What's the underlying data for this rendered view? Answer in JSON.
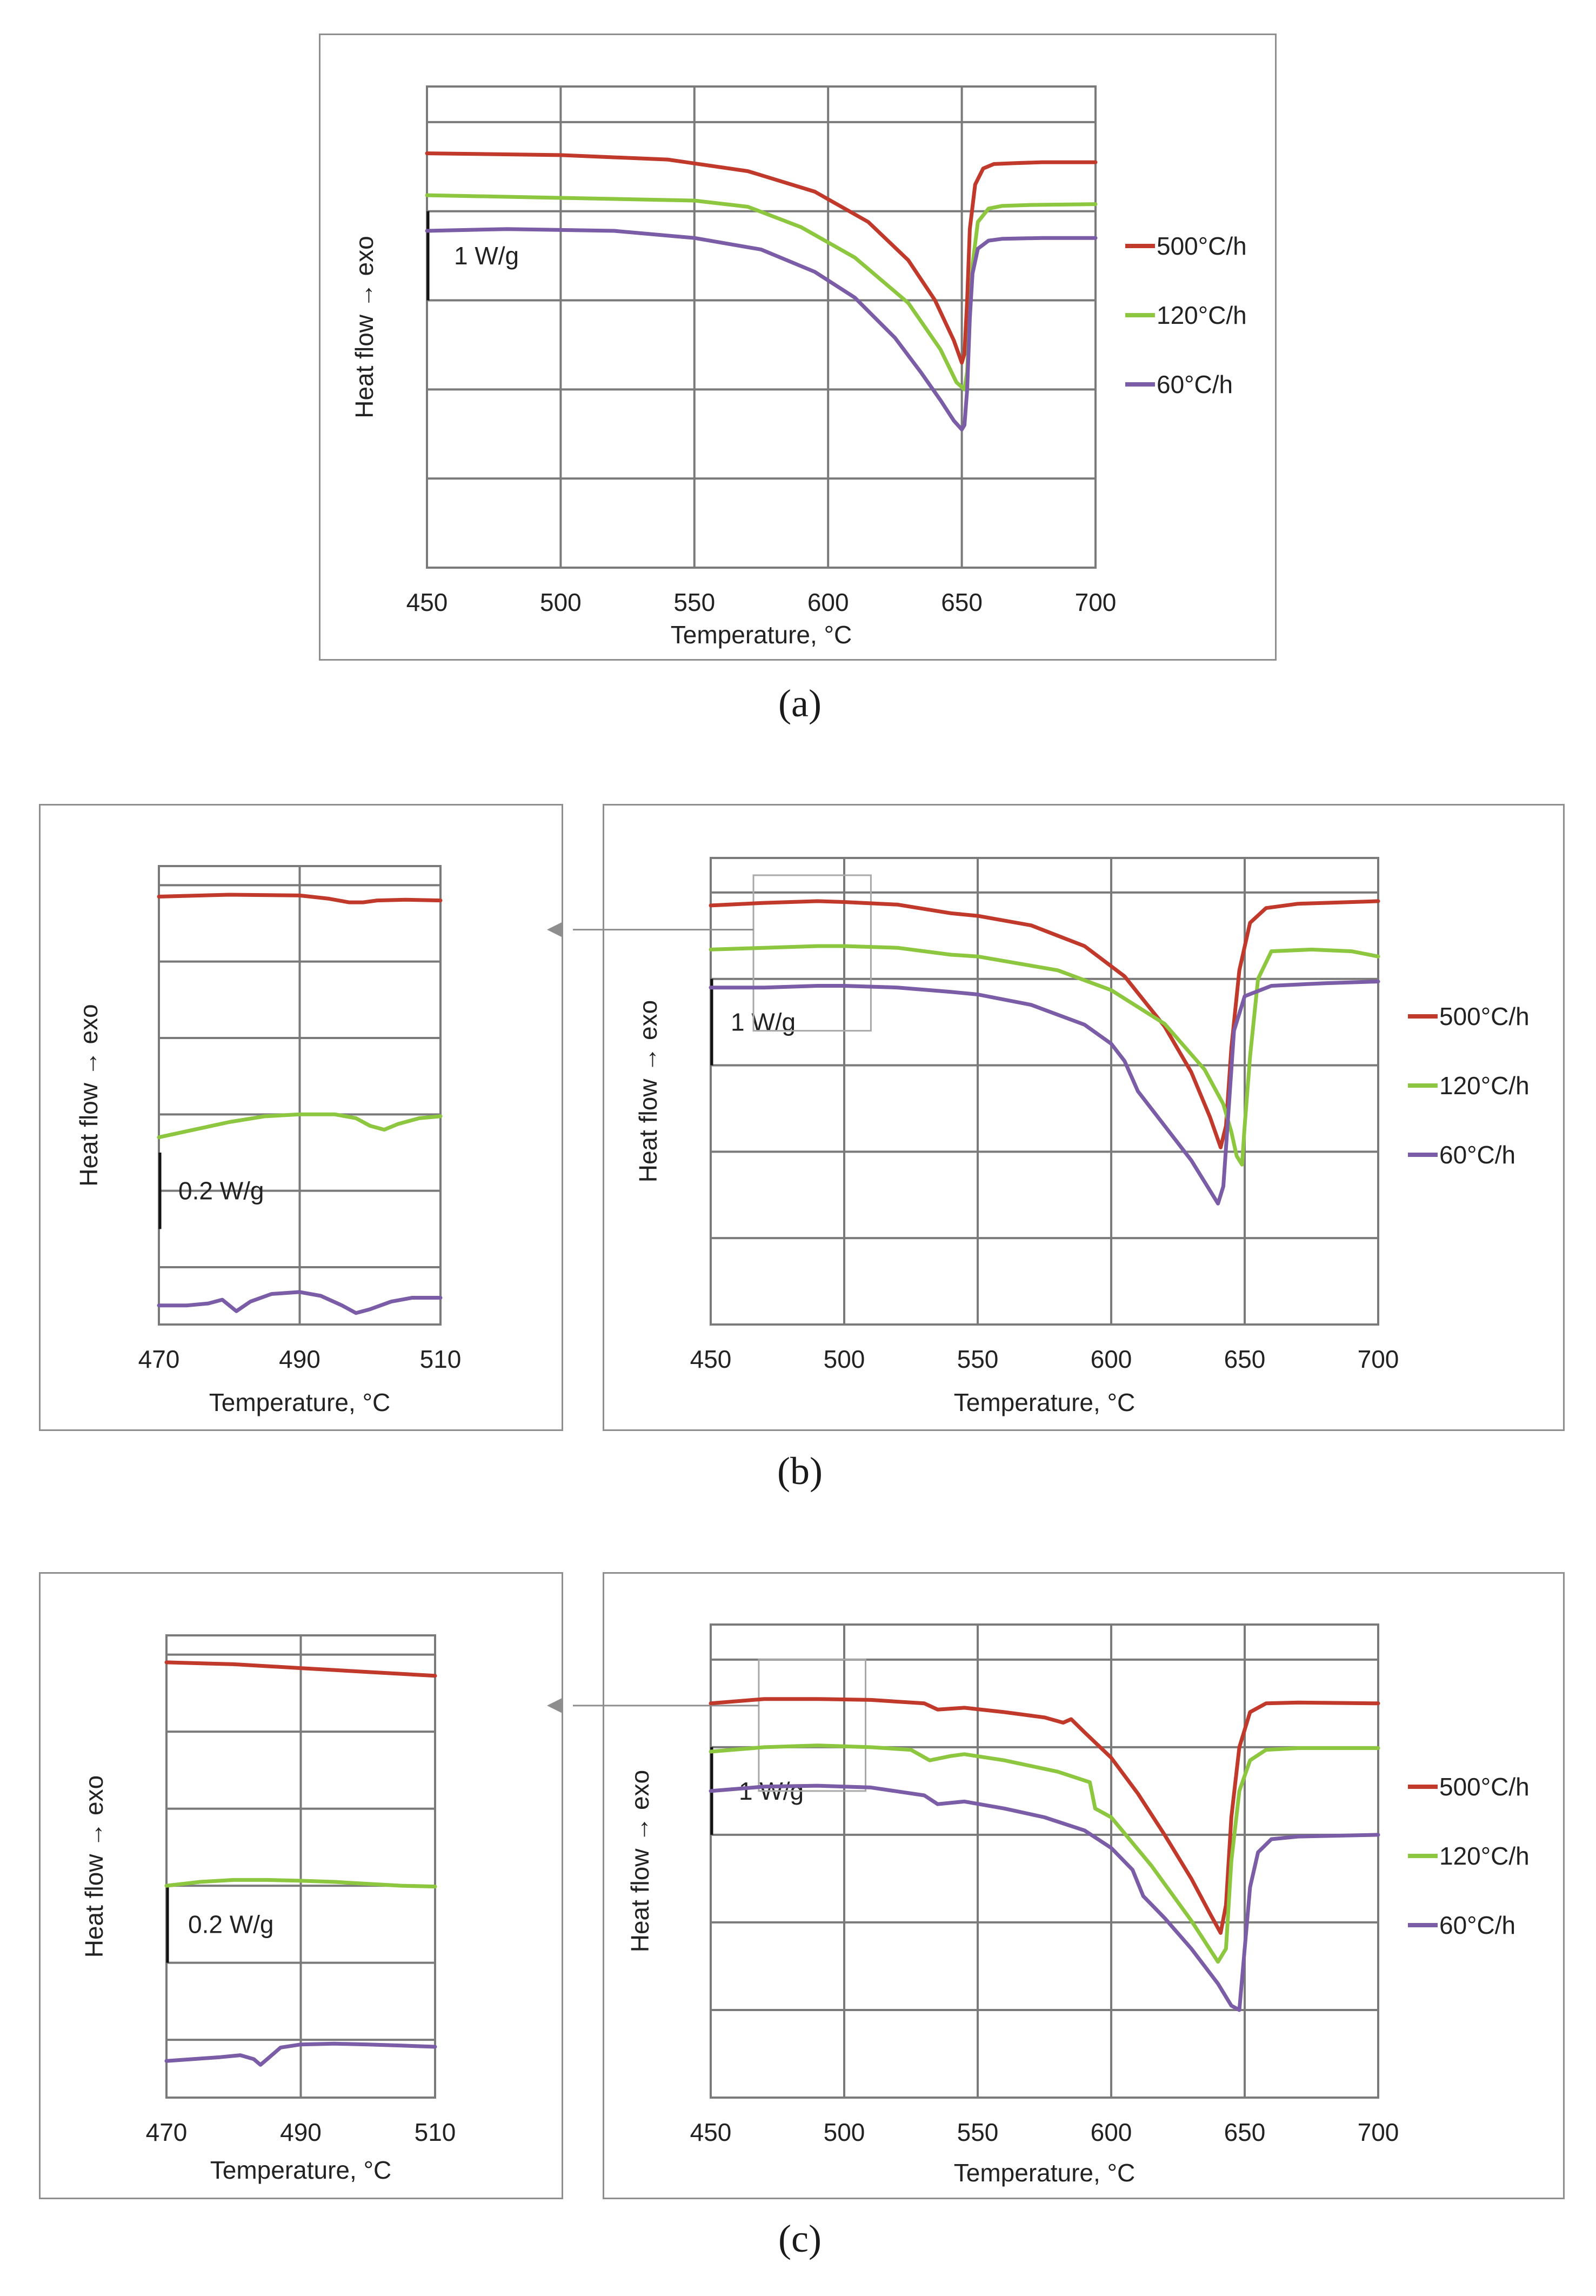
{
  "figure_labels": {
    "a": "(a)",
    "b": "(b)",
    "c": "(c)"
  },
  "chart_data": [
    {
      "id": "a-main",
      "type": "line",
      "title": "",
      "xlabel": "Temperature, °C",
      "ylabel": "Heat flow  → exo",
      "xlim": [
        450,
        700
      ],
      "ylim": [
        -5.0,
        0.4
      ],
      "xticks": [
        450,
        500,
        550,
        600,
        650,
        700
      ],
      "xtick_labels": [
        "450",
        "500",
        "550",
        "600",
        "650",
        "700"
      ],
      "ygrid": [
        -4,
        -3,
        -2,
        -1,
        0
      ],
      "scale_bar": {
        "label": "1 W/g",
        "from": -2.0,
        "to": -1.0
      },
      "grid": true,
      "legend_position": "right",
      "series": [
        {
          "name": "500°C/h",
          "color": "#c0392b",
          "x": [
            450,
            500,
            540,
            570,
            595,
            615,
            630,
            640,
            647,
            650,
            651,
            652,
            653,
            655,
            658,
            662,
            670,
            680,
            700
          ],
          "y": [
            -0.35,
            -0.37,
            -0.42,
            -0.55,
            -0.78,
            -1.12,
            -1.55,
            -2.0,
            -2.45,
            -2.7,
            -2.6,
            -2.0,
            -1.2,
            -0.7,
            -0.52,
            -0.47,
            -0.46,
            -0.45,
            -0.45
          ]
        },
        {
          "name": "120°C/h",
          "color": "#8dc63f",
          "x": [
            450,
            500,
            550,
            570,
            590,
            610,
            630,
            642,
            648,
            651,
            652,
            653,
            654,
            656,
            660,
            665,
            675,
            700
          ],
          "y": [
            -0.82,
            -0.85,
            -0.88,
            -0.95,
            -1.18,
            -1.52,
            -2.03,
            -2.55,
            -2.92,
            -3.0,
            -2.8,
            -2.2,
            -1.6,
            -1.12,
            -0.97,
            -0.94,
            -0.93,
            -0.92
          ]
        },
        {
          "name": "60°C/h",
          "color": "#7b5ca7",
          "x": [
            450,
            480,
            520,
            550,
            575,
            595,
            610,
            625,
            635,
            642,
            647,
            650,
            651,
            652,
            653,
            654,
            656,
            660,
            665,
            680,
            700
          ],
          "y": [
            -1.22,
            -1.2,
            -1.22,
            -1.3,
            -1.43,
            -1.68,
            -1.97,
            -2.42,
            -2.82,
            -3.12,
            -3.35,
            -3.45,
            -3.4,
            -3.0,
            -2.2,
            -1.7,
            -1.42,
            -1.33,
            -1.31,
            -1.3,
            -1.3
          ]
        }
      ]
    },
    {
      "id": "b-zoom",
      "type": "line",
      "title": "",
      "xlabel": "Temperature, °C",
      "ylabel": "Heat flow  → exo",
      "xlim": [
        470,
        510
      ],
      "ylim": [
        -1.15,
        0.05
      ],
      "xticks": [
        470,
        490,
        510
      ],
      "xtick_labels": [
        "470",
        "490",
        "510"
      ],
      "ygrid": [
        -1.0,
        -0.8,
        -0.6,
        -0.4,
        -0.2,
        0.0
      ],
      "scale_bar": {
        "label": "0.2 W/g",
        "from": -0.9,
        "to": -0.7
      },
      "grid": true,
      "series": [
        {
          "name": "500°C/h",
          "color": "#c0392b",
          "x": [
            470,
            480,
            490,
            494,
            497,
            499,
            501,
            505,
            510
          ],
          "y": [
            -0.03,
            -0.025,
            -0.027,
            -0.035,
            -0.045,
            -0.045,
            -0.04,
            -0.038,
            -0.04
          ]
        },
        {
          "name": "120°C/h",
          "color": "#8dc63f",
          "x": [
            470,
            475,
            480,
            485,
            490,
            495,
            498,
            500,
            502,
            504,
            507,
            510
          ],
          "y": [
            -0.66,
            -0.64,
            -0.62,
            -0.605,
            -0.6,
            -0.6,
            -0.61,
            -0.63,
            -0.64,
            -0.625,
            -0.61,
            -0.605
          ]
        },
        {
          "name": "60°C/h",
          "color": "#7b5ca7",
          "x": [
            470,
            474,
            477,
            479,
            481,
            483,
            486,
            490,
            493,
            496,
            498,
            500,
            503,
            506,
            510
          ],
          "y": [
            -1.1,
            -1.1,
            -1.095,
            -1.085,
            -1.115,
            -1.09,
            -1.07,
            -1.065,
            -1.075,
            -1.1,
            -1.12,
            -1.11,
            -1.09,
            -1.08,
            -1.08
          ]
        }
      ]
    },
    {
      "id": "b-main",
      "type": "line",
      "title": "",
      "xlabel": "Temperature, °C",
      "ylabel": "Heat flow  → exo",
      "xlim": [
        450,
        700
      ],
      "ylim": [
        -5.0,
        0.4
      ],
      "xticks": [
        450,
        500,
        550,
        600,
        650,
        700
      ],
      "xtick_labels": [
        "450",
        "500",
        "550",
        "600",
        "650",
        "700"
      ],
      "ygrid": [
        -4,
        -3,
        -2,
        -1,
        0
      ],
      "scale_bar": {
        "label": "1 W/g",
        "from": -2.0,
        "to": -1.0
      },
      "zoom_box": {
        "x": [
          466,
          510
        ],
        "y": [
          -1.6,
          0.2
        ]
      },
      "grid": true,
      "legend_position": "right",
      "series": [
        {
          "name": "500°C/h",
          "color": "#c0392b",
          "x": [
            450,
            470,
            490,
            500,
            520,
            540,
            550,
            570,
            590,
            605,
            620,
            630,
            637,
            641,
            643,
            645,
            648,
            652,
            658,
            670,
            700
          ],
          "y": [
            -0.15,
            -0.12,
            -0.1,
            -0.11,
            -0.14,
            -0.24,
            -0.27,
            -0.38,
            -0.62,
            -0.97,
            -1.55,
            -2.08,
            -2.6,
            -2.95,
            -2.7,
            -1.8,
            -0.9,
            -0.35,
            -0.18,
            -0.13,
            -0.1
          ]
        },
        {
          "name": "120°C/h",
          "color": "#8dc63f",
          "x": [
            450,
            470,
            490,
            500,
            520,
            540,
            550,
            580,
            600,
            620,
            635,
            642,
            645,
            647,
            649,
            650,
            652,
            655,
            660,
            675,
            690,
            700
          ],
          "y": [
            -0.66,
            -0.64,
            -0.62,
            -0.62,
            -0.64,
            -0.72,
            -0.74,
            -0.9,
            -1.13,
            -1.52,
            -2.05,
            -2.45,
            -2.77,
            -3.05,
            -3.15,
            -2.7,
            -1.9,
            -1.0,
            -0.68,
            -0.66,
            -0.68,
            -0.74
          ]
        },
        {
          "name": "60°C/h",
          "color": "#7b5ca7",
          "x": [
            450,
            470,
            480,
            490,
            500,
            520,
            540,
            550,
            570,
            590,
            600,
            605,
            610,
            620,
            630,
            637,
            640,
            642,
            644,
            646,
            650,
            660,
            680,
            700
          ],
          "y": [
            -1.1,
            -1.1,
            -1.09,
            -1.08,
            -1.08,
            -1.1,
            -1.15,
            -1.18,
            -1.3,
            -1.53,
            -1.75,
            -1.95,
            -2.3,
            -2.7,
            -3.1,
            -3.45,
            -3.6,
            -3.4,
            -2.5,
            -1.6,
            -1.2,
            -1.08,
            -1.05,
            -1.03
          ]
        }
      ]
    },
    {
      "id": "c-zoom",
      "type": "line",
      "title": "",
      "xlabel": "Temperature, °C",
      "ylabel": "Heat flow  → exo",
      "xlim": [
        470,
        510
      ],
      "ylim": [
        -1.15,
        0.05
      ],
      "xticks": [
        470,
        490,
        510
      ],
      "xtick_labels": [
        "470",
        "490",
        "510"
      ],
      "ygrid": [
        -1.0,
        -0.8,
        -0.6,
        -0.4,
        -0.2,
        0.0
      ],
      "scale_bar": {
        "label": "0.2 W/g",
        "from": -0.8,
        "to": -0.6
      },
      "grid": true,
      "series": [
        {
          "name": "500°C/h",
          "color": "#c0392b",
          "x": [
            470,
            480,
            490,
            500,
            510
          ],
          "y": [
            -0.02,
            -0.025,
            -0.035,
            -0.045,
            -0.055
          ]
        },
        {
          "name": "120°C/h",
          "color": "#8dc63f",
          "x": [
            470,
            475,
            480,
            485,
            490,
            495,
            500,
            505,
            510
          ],
          "y": [
            -0.6,
            -0.59,
            -0.585,
            -0.585,
            -0.587,
            -0.59,
            -0.595,
            -0.6,
            -0.602
          ]
        },
        {
          "name": "60°C/h",
          "color": "#7b5ca7",
          "x": [
            470,
            474,
            478,
            481,
            483,
            484,
            485,
            487,
            490,
            495,
            500,
            505,
            510
          ],
          "y": [
            -1.055,
            -1.05,
            -1.045,
            -1.04,
            -1.05,
            -1.065,
            -1.05,
            -1.02,
            -1.012,
            -1.01,
            -1.012,
            -1.015,
            -1.018
          ]
        }
      ]
    },
    {
      "id": "c-main",
      "type": "line",
      "title": "",
      "xlabel": "Temperature, °C",
      "ylabel": "Heat flow  → exo",
      "xlim": [
        450,
        700
      ],
      "ylim": [
        -5.0,
        0.4
      ],
      "xticks": [
        450,
        500,
        550,
        600,
        650,
        700
      ],
      "xtick_labels": [
        "450",
        "500",
        "550",
        "600",
        "650",
        "700"
      ],
      "ygrid": [
        -4,
        -3,
        -2,
        -1,
        0
      ],
      "scale_bar": {
        "label": "1 W/g",
        "from": -2.0,
        "to": -1.0
      },
      "zoom_box": {
        "x": [
          468,
          508
        ],
        "y": [
          -1.5,
          0.0
        ]
      },
      "grid": true,
      "legend_position": "right",
      "series": [
        {
          "name": "500°C/h",
          "color": "#c0392b",
          "x": [
            450,
            470,
            490,
            510,
            530,
            535,
            545,
            560,
            575,
            582,
            585,
            590,
            600,
            610,
            620,
            630,
            637,
            641,
            643,
            645,
            648,
            652,
            658,
            670,
            700
          ],
          "y": [
            -0.5,
            -0.45,
            -0.45,
            -0.46,
            -0.5,
            -0.57,
            -0.55,
            -0.6,
            -0.66,
            -0.72,
            -0.68,
            -0.83,
            -1.12,
            -1.53,
            -2.0,
            -2.5,
            -2.9,
            -3.12,
            -2.8,
            -1.8,
            -1.0,
            -0.6,
            -0.5,
            -0.49,
            -0.5
          ]
        },
        {
          "name": "120°C/h",
          "color": "#8dc63f",
          "x": [
            450,
            470,
            490,
            510,
            525,
            532,
            540,
            545,
            560,
            580,
            592,
            594,
            600,
            615,
            630,
            640,
            643,
            645,
            648,
            652,
            658,
            670,
            700
          ],
          "y": [
            -1.05,
            -1.0,
            -0.98,
            -1.0,
            -1.03,
            -1.15,
            -1.1,
            -1.08,
            -1.15,
            -1.28,
            -1.4,
            -1.7,
            -1.8,
            -2.35,
            -2.98,
            -3.45,
            -3.3,
            -2.3,
            -1.5,
            -1.15,
            -1.03,
            -1.01,
            -1.01
          ]
        },
        {
          "name": "60°C/h",
          "color": "#7b5ca7",
          "x": [
            450,
            470,
            490,
            510,
            530,
            535,
            545,
            560,
            575,
            590,
            600,
            608,
            612,
            620,
            630,
            640,
            645,
            648,
            650,
            652,
            655,
            660,
            670,
            700
          ],
          "y": [
            -1.5,
            -1.45,
            -1.44,
            -1.46,
            -1.55,
            -1.65,
            -1.62,
            -1.7,
            -1.8,
            -1.95,
            -2.15,
            -2.4,
            -2.7,
            -2.95,
            -3.3,
            -3.7,
            -3.95,
            -4.0,
            -3.3,
            -2.6,
            -2.2,
            -2.05,
            -2.02,
            -2.0
          ]
        }
      ]
    }
  ]
}
